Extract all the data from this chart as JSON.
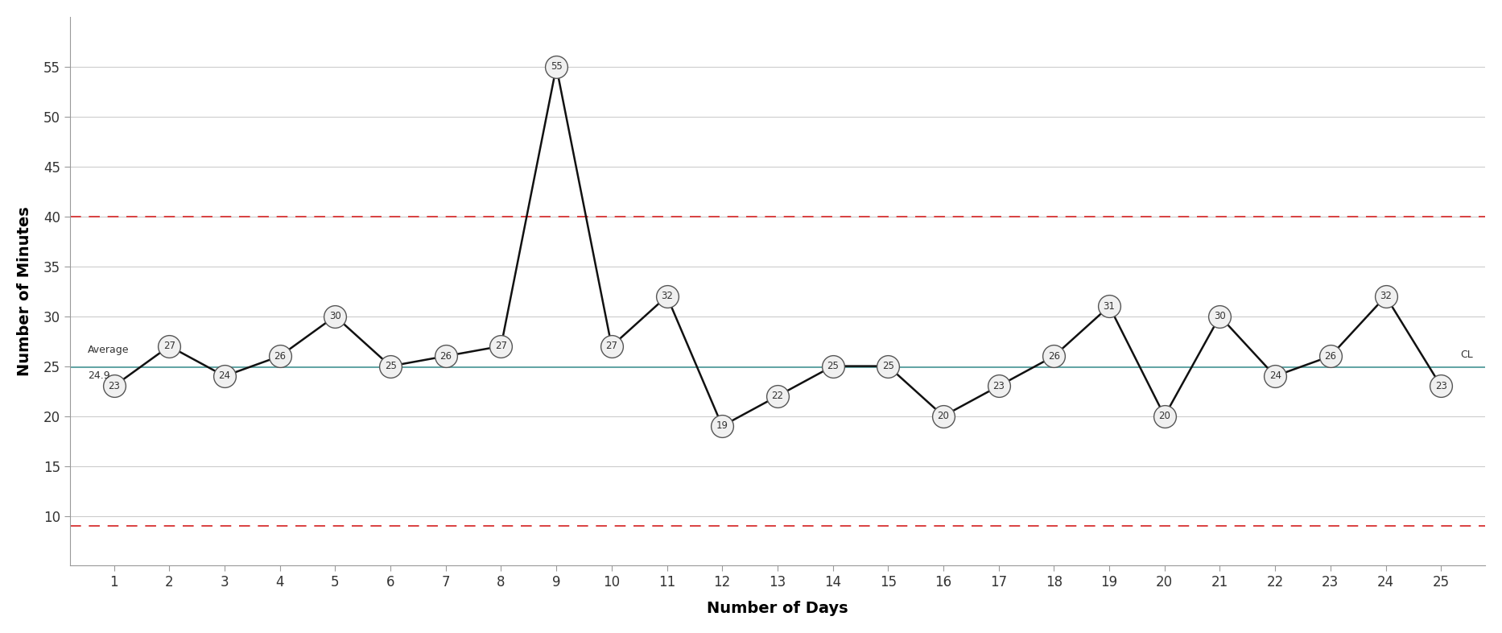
{
  "days": [
    1,
    2,
    3,
    4,
    5,
    6,
    7,
    8,
    9,
    10,
    11,
    12,
    13,
    14,
    15,
    16,
    17,
    18,
    19,
    20,
    21,
    22,
    23,
    24,
    25
  ],
  "values": [
    23,
    27,
    24,
    26,
    30,
    25,
    26,
    27,
    55,
    27,
    32,
    19,
    22,
    25,
    25,
    20,
    23,
    26,
    31,
    20,
    30,
    24,
    26,
    32,
    23
  ],
  "ucl": 40,
  "lcl": 9,
  "average": 24.9,
  "ucl_color": "#d94040",
  "lcl_color": "#d94040",
  "average_color": "#4a9999",
  "line_color": "#111111",
  "marker_facecolor": "#f0f0f0",
  "marker_edgecolor": "#555555",
  "xlabel": "Number of Days",
  "ylabel": "Number of Minutes",
  "ylim_min": 5,
  "ylim_max": 60,
  "yticks": [
    10,
    15,
    20,
    25,
    30,
    35,
    40,
    45,
    50,
    55
  ],
  "background_color": "#ffffff",
  "grid_color": "#cccccc",
  "marker_size": 20,
  "font_size": 12,
  "label_font_size": 14
}
